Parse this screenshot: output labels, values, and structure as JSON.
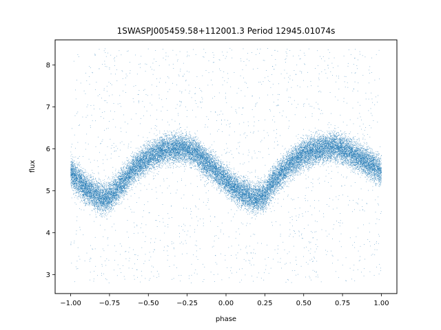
{
  "chart_data": {
    "type": "scatter",
    "title": "1SWASPJ005459.58+112001.3 Period 12945.01074s",
    "xlabel": "phase",
    "ylabel": "flux",
    "xlim": [
      -1.1,
      1.1
    ],
    "ylim": [
      2.55,
      8.6
    ],
    "x_ticks": [
      -1.0,
      -0.75,
      -0.5,
      -0.25,
      0.0,
      0.25,
      0.5,
      0.75,
      1.0
    ],
    "x_tick_labels": [
      "−1.00",
      "−0.75",
      "−0.50",
      "−0.25",
      "0.00",
      "0.25",
      "0.50",
      "0.75",
      "1.00"
    ],
    "y_ticks": [
      3,
      4,
      5,
      6,
      7,
      8
    ],
    "y_tick_labels": [
      "3",
      "4",
      "5",
      "6",
      "7",
      "8"
    ],
    "grid": false,
    "color": "#1f77b4",
    "series": [
      {
        "trend_phase": [
          -1.0,
          -0.9,
          -0.8,
          -0.75,
          -0.7,
          -0.6,
          -0.5,
          -0.4,
          -0.3,
          -0.25,
          -0.2,
          -0.1,
          0.0,
          0.1,
          0.2,
          0.25,
          0.3,
          0.4,
          0.5,
          0.6,
          0.7,
          0.75,
          0.8,
          0.9,
          1.0
        ],
        "trend_flux": [
          5.45,
          5.05,
          4.8,
          4.85,
          5.05,
          5.5,
          5.8,
          5.98,
          6.02,
          6.0,
          5.92,
          5.6,
          5.25,
          4.95,
          4.82,
          4.9,
          5.2,
          5.6,
          5.88,
          6.0,
          6.05,
          6.0,
          5.92,
          5.7,
          5.45
        ],
        "scatter_width": 0.3,
        "outlier_range": [
          2.8,
          8.4
        ],
        "n_points": 26000,
        "n_outliers": 1800
      }
    ]
  }
}
